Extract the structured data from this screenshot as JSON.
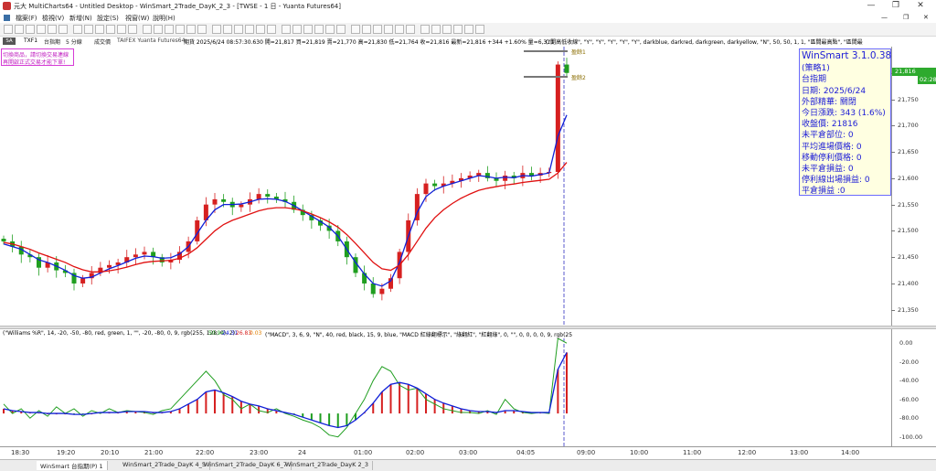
{
  "window": {
    "title": "元大 MultiCharts64 - Untitled Desktop - WinSmart_2Trade_DayK_2_3 - [TWSE - 1 日 - Yuanta Futures64]",
    "controls": [
      "—",
      "❐",
      "✕"
    ]
  },
  "menu": {
    "items": [
      "檔案(F)",
      "檢視(V)",
      "新增(N)",
      "設定(S)",
      "視窗(W)",
      "說明(H)"
    ]
  },
  "chart_header": {
    "symbol": "TXF1",
    "name": "台指期",
    "interval": "5 分線",
    "volume_label": "成交價",
    "source": "TAIFEX  Yuanta Futures64",
    "quote": "期貨  2025/6/24  08:57:30.630  開=21,817  買=21,819  賣=21,770  高=21,830  低=21,764  收=21,816  最新=21,816 +344 +1.60%  量=6,311",
    "study": "(\"開高低收線\", \"Y\", \"Y\", \"Y\", \"Y\", \"Y\", darkblue, darkred, darkgreen, darkyellow, \"N\", 50, 50, 1, 1, \"區間最高點\", \"區間最"
  },
  "notes": [
    "切換商品，請切換交易連線",
    "再開啟正式交易才能下單!"
  ],
  "markers": [
    "盈餘1",
    "盈餘2"
  ],
  "price_axis": {
    "ticks": [
      "21,800",
      "21,750",
      "21,700",
      "21,650",
      "21,600",
      "21,550",
      "21,500",
      "21,450",
      "21,400",
      "21,350"
    ],
    "last_price": "21,816",
    "last_time": "02:28"
  },
  "info_box": {
    "lines": [
      "WinSmart 3.1.0.38",
      "(策略1)",
      "台指期",
      "日期: 2025/6/24",
      "外部精華: 關閉",
      "今日漲跌: 343 (1.6%)",
      "收盤價: 21816",
      "未平倉部位: 0",
      "平均進場價格: 0",
      "移動停利價格: 0",
      "未平倉損益: 0",
      "停利線出場損益: 0",
      "平倉損益 :0"
    ]
  },
  "indicator": {
    "header_left": "(\"Williams %R\", 14, -20, -50, -80, red, green, 1, \"\", -20, -80, 0, 9, rgb(255, 128, 0), 2)",
    "wr_values": [
      "50.94",
      "24.31",
      "26.83",
      "0.03"
    ],
    "header_right": "(\"MACD\", 3, 6, 9, \"N\", 40, red, black, 15, 9, blue, \"MACD 紅綠翻標示\", \"綠翻紅\", \"紅翻綠\", 0, \"\", 0, 0, 0, 0, 9, rgb(25",
    "ticks": [
      "0.00",
      "-20.00",
      "-40.00",
      "-60.00",
      "-80.00",
      "-100.00"
    ]
  },
  "time_axis": {
    "ticks": [
      "18:30",
      "19:20",
      "20:10",
      "21:00",
      "22:00",
      "23:00",
      "24",
      "01:00",
      "02:00",
      "03:00",
      "04:05",
      "09:00",
      "10:00",
      "11:00",
      "12:00",
      "13:00",
      "14:00"
    ]
  },
  "tabs": [
    "WinSmart 台指期(P) 1",
    "WinSmart_2Trade_DayK 4_5",
    "WinSmart_2Trade_DayK 6_7",
    "WinSmart_2Trade_DayK 2_3"
  ],
  "colors": {
    "up_candle": "#d62020",
    "down_candle": "#1f9e1f",
    "ma_fast": "#1020d8",
    "ma_slow": "#e01010",
    "info_text": "#1c1cd6",
    "info_bg": "#ffffe1",
    "last_price_box": "#2eaa2e",
    "last_time_box": "#2eaa2e"
  },
  "chart_data": [
    {
      "type": "candlestick",
      "title": "",
      "ylim": [
        21320,
        21850
      ],
      "x_labels": [
        "18:30",
        "19:20",
        "20:10",
        "21:00",
        "22:00",
        "23:00",
        "24",
        "01:00",
        "02:00",
        "03:00",
        "04:05",
        "09:00"
      ],
      "close": [
        21480,
        21470,
        21455,
        21450,
        21430,
        21440,
        21425,
        21420,
        21400,
        21410,
        21420,
        21430,
        21435,
        21440,
        21450,
        21455,
        21460,
        21450,
        21440,
        21445,
        21460,
        21480,
        21520,
        21550,
        21560,
        21555,
        21545,
        21550,
        21560,
        21570,
        21565,
        21560,
        21555,
        21540,
        21530,
        21520,
        21510,
        21500,
        21480,
        21450,
        21420,
        21400,
        21380,
        21390,
        21410,
        21460,
        21520,
        21570,
        21590,
        21585,
        21590,
        21595,
        21600,
        21605,
        21610,
        21600,
        21595,
        21605,
        21600,
        21610,
        21605,
        21610,
        21612,
        21816,
        21800
      ],
      "series": [
        {
          "name": "MA-fast",
          "values": [
            21475,
            21470,
            21465,
            21455,
            21445,
            21440,
            21433,
            21425,
            21415,
            21410,
            21412,
            21420,
            21428,
            21434,
            21441,
            21448,
            21452,
            21451,
            21448,
            21449,
            21456,
            21470,
            21495,
            21520,
            21540,
            21550,
            21550,
            21551,
            21555,
            21560,
            21561,
            21560,
            21556,
            21548,
            21538,
            21528,
            21518,
            21507,
            21490,
            21465,
            21440,
            21418,
            21400,
            21395,
            21405,
            21440,
            21490,
            21535,
            21565,
            21578,
            21585,
            21590,
            21595,
            21600,
            21605,
            21603,
            21600,
            21602,
            21601,
            21605,
            21604,
            21607,
            21610,
            21680,
            21720
          ]
        },
        {
          "name": "MA-slow",
          "values": [
            21478,
            21475,
            21470,
            21465,
            21458,
            21452,
            21446,
            21440,
            21432,
            21426,
            21422,
            21422,
            21424,
            21427,
            21431,
            21436,
            21440,
            21442,
            21443,
            21444,
            21448,
            21456,
            21468,
            21484,
            21500,
            21512,
            21520,
            21526,
            21532,
            21538,
            21542,
            21544,
            21544,
            21542,
            21538,
            21532,
            21525,
            21517,
            21507,
            21493,
            21476,
            21458,
            21440,
            21428,
            21425,
            21435,
            21455,
            21480,
            21505,
            21525,
            21540,
            21552,
            21562,
            21570,
            21577,
            21581,
            21584,
            21587,
            21589,
            21592,
            21594,
            21596,
            21598,
            21610,
            21630
          ]
        }
      ]
    },
    {
      "type": "bar",
      "title": "",
      "ylim": [
        -110,
        5
      ],
      "series": [
        {
          "name": "Williams %R",
          "values": [
            -65,
            -75,
            -70,
            -80,
            -72,
            -78,
            -68,
            -75,
            -70,
            -78,
            -72,
            -75,
            -70,
            -74,
            -72,
            -73,
            -74,
            -76,
            -72,
            -70,
            -60,
            -50,
            -40,
            -30,
            -40,
            -55,
            -60,
            -70,
            -65,
            -72,
            -74,
            -70,
            -75,
            -78,
            -82,
            -85,
            -90,
            -98,
            -100,
            -90,
            -75,
            -60,
            -40,
            -25,
            -30,
            -45,
            -50,
            -48,
            -60,
            -65,
            -70,
            -72,
            -74,
            -74,
            -75,
            -72,
            -76,
            -60,
            -70,
            -74,
            -75,
            -74,
            -75,
            5,
            0
          ]
        },
        {
          "name": "MACD",
          "values": [
            -70,
            -72,
            -73,
            -74,
            -74,
            -75,
            -75,
            -75,
            -76,
            -76,
            -75,
            -74,
            -74,
            -74,
            -73,
            -73,
            -73,
            -74,
            -74,
            -73,
            -70,
            -65,
            -60,
            -52,
            -50,
            -53,
            -57,
            -62,
            -65,
            -67,
            -70,
            -72,
            -74,
            -76,
            -79,
            -82,
            -85,
            -88,
            -90,
            -88,
            -82,
            -74,
            -64,
            -52,
            -44,
            -42,
            -44,
            -48,
            -54,
            -60,
            -64,
            -67,
            -70,
            -72,
            -73,
            -73,
            -74,
            -72,
            -72,
            -73,
            -74,
            -74,
            -74,
            -28,
            -10
          ]
        }
      ]
    }
  ]
}
